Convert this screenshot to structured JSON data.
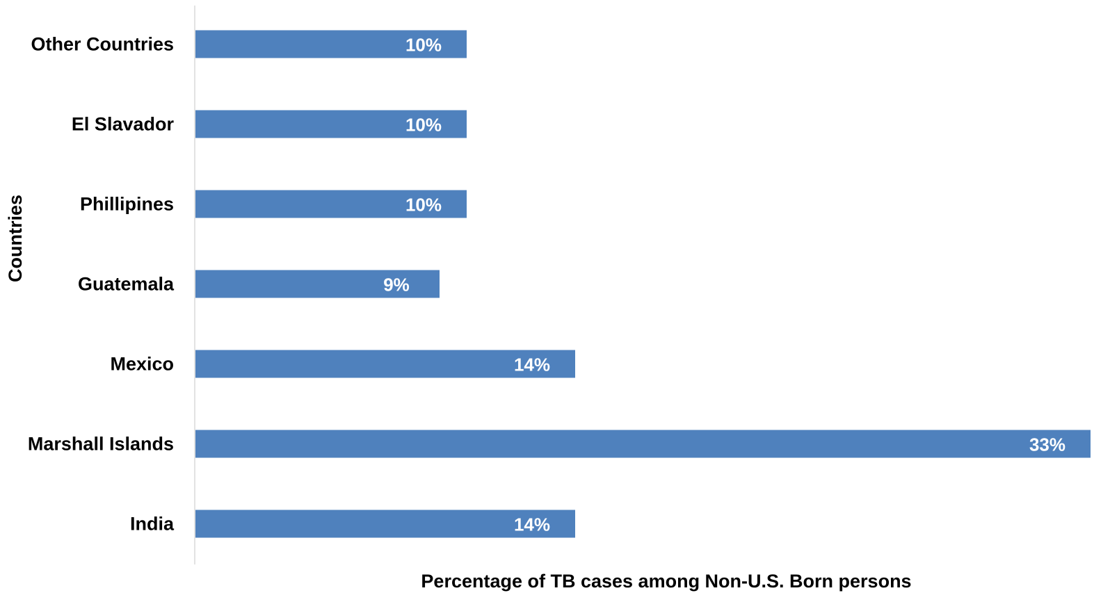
{
  "chart_data": {
    "type": "bar",
    "orientation": "horizontal",
    "categories": [
      "Other Countries",
      "El Slavador",
      "Phillipines",
      "Guatemala",
      "Mexico",
      "Marshall Islands",
      "India"
    ],
    "values": [
      10,
      10,
      10,
      9,
      14,
      33,
      14
    ],
    "data_labels": [
      "10%",
      "10%",
      "10%",
      "9%",
      "14%",
      "33%",
      "14%"
    ],
    "title": "",
    "xlabel": "Percentage of TB cases among Non-U.S. Born persons",
    "ylabel": "Countries",
    "xlim": [
      0,
      33
    ],
    "grid": false,
    "legend": "none",
    "bar_color": "#4f81bd",
    "axis_color": "#d9d9d9",
    "label_color": "#ffffff"
  }
}
